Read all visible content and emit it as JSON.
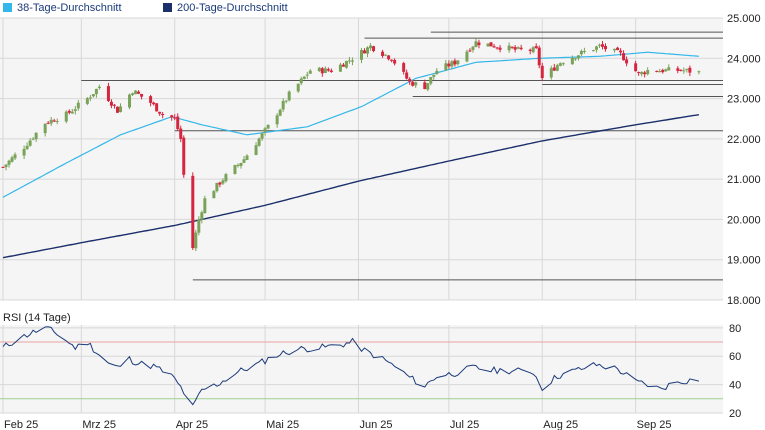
{
  "legend": [
    {
      "label": "38-Tage-Durchschnitt",
      "color": "#33b7ea"
    },
    {
      "label": "200-Tage-Durchschnitt",
      "color": "#1b2f6b"
    }
  ],
  "colors": {
    "up": "#7aa35a",
    "down": "#d6263f",
    "grid": "#d8d8d8",
    "panel_bg": "#f5f5f5",
    "rsi_line": "#1b3a7a",
    "rsi_upper": "#e8a3a3",
    "rsi_lower": "#9fcf8f",
    "support": "#555555"
  },
  "chart_data": [
    {
      "type": "candlestick",
      "title": "",
      "ylim": [
        18000,
        25000
      ],
      "y_ticks": [
        {
          "value": 25000,
          "label": "25.000"
        },
        {
          "value": 24000,
          "label": "24.000"
        },
        {
          "value": 23000,
          "label": "23.000"
        },
        {
          "value": 22000,
          "label": "22.000"
        },
        {
          "value": 21000,
          "label": "21.000"
        },
        {
          "value": 20000,
          "label": "20.000"
        },
        {
          "value": 19000,
          "label": "19.000"
        },
        {
          "value": 18000,
          "label": "18.000"
        }
      ],
      "x_range": [
        "2025-02-03",
        "2025-09-30"
      ],
      "x_ticks": [
        {
          "date": "2025-02-01",
          "label": "Feb 25"
        },
        {
          "date": "2025-03-01",
          "label": "Mrz 25"
        },
        {
          "date": "2025-04-01",
          "label": "Apr 25"
        },
        {
          "date": "2025-05-01",
          "label": "Mai 25"
        },
        {
          "date": "2025-06-01",
          "label": "Jun 25"
        },
        {
          "date": "2025-07-01",
          "label": "Jul 25"
        },
        {
          "date": "2025-08-01",
          "label": "Aug 25"
        },
        {
          "date": "2025-09-01",
          "label": "Sep 25"
        }
      ],
      "price_anchors": [
        [
          "2025-02-03",
          21300
        ],
        [
          "2025-02-10",
          21800
        ],
        [
          "2025-02-17",
          22400
        ],
        [
          "2025-02-24",
          22600
        ],
        [
          "2025-03-03",
          23000
        ],
        [
          "2025-03-07",
          23300
        ],
        [
          "2025-03-13",
          22700
        ],
        [
          "2025-03-18",
          23200
        ],
        [
          "2025-03-24",
          22900
        ],
        [
          "2025-03-28",
          22600
        ],
        [
          "2025-04-01",
          22500
        ],
        [
          "2025-04-03",
          22000
        ],
        [
          "2025-04-04",
          21100
        ],
        [
          "2025-04-07",
          19300
        ],
        [
          "2025-04-09",
          20000
        ],
        [
          "2025-04-11",
          20500
        ],
        [
          "2025-04-17",
          21000
        ],
        [
          "2025-04-24",
          21500
        ],
        [
          "2025-05-02",
          22300
        ],
        [
          "2025-05-09",
          23100
        ],
        [
          "2025-05-16",
          23700
        ],
        [
          "2025-05-23",
          23700
        ],
        [
          "2025-05-30",
          24000
        ],
        [
          "2025-06-05",
          24300
        ],
        [
          "2025-06-12",
          24000
        ],
        [
          "2025-06-18",
          23400
        ],
        [
          "2025-06-23",
          23300
        ],
        [
          "2025-06-27",
          23700
        ],
        [
          "2025-07-03",
          23900
        ],
        [
          "2025-07-10",
          24400
        ],
        [
          "2025-07-17",
          24300
        ],
        [
          "2025-07-24",
          24200
        ],
        [
          "2025-07-30",
          24200
        ],
        [
          "2025-08-01",
          23500
        ],
        [
          "2025-08-07",
          23900
        ],
        [
          "2025-08-13",
          24100
        ],
        [
          "2025-08-20",
          24300
        ],
        [
          "2025-08-27",
          24100
        ],
        [
          "2025-09-02",
          23600
        ],
        [
          "2025-09-05",
          23700
        ],
        [
          "2025-09-11",
          23700
        ],
        [
          "2025-09-17",
          23700
        ],
        [
          "2025-09-22",
          23650
        ]
      ],
      "sma38": [
        [
          "2025-02-03",
          20550
        ],
        [
          "2025-02-24",
          21400
        ],
        [
          "2025-03-14",
          22100
        ],
        [
          "2025-03-31",
          22550
        ],
        [
          "2025-04-10",
          22350
        ],
        [
          "2025-04-25",
          22100
        ],
        [
          "2025-05-15",
          22300
        ],
        [
          "2025-06-02",
          22800
        ],
        [
          "2025-06-20",
          23500
        ],
        [
          "2025-07-10",
          23900
        ],
        [
          "2025-07-31",
          24000
        ],
        [
          "2025-08-20",
          24050
        ],
        [
          "2025-09-05",
          24150
        ],
        [
          "2025-09-22",
          24050
        ]
      ],
      "sma200": [
        [
          "2025-02-03",
          19050
        ],
        [
          "2025-03-03",
          19450
        ],
        [
          "2025-04-01",
          19850
        ],
        [
          "2025-05-01",
          20350
        ],
        [
          "2025-06-01",
          20950
        ],
        [
          "2025-07-01",
          21450
        ],
        [
          "2025-08-01",
          21950
        ],
        [
          "2025-09-01",
          22350
        ],
        [
          "2025-09-22",
          22600
        ]
      ],
      "support_lines": [
        {
          "start": "2025-06-25",
          "end": "2025-09-30",
          "value": 24650
        },
        {
          "start": "2025-06-03",
          "end": "2025-09-30",
          "value": 24500
        },
        {
          "start": "2025-03-01",
          "end": "2025-09-30",
          "value": 23450
        },
        {
          "start": "2025-08-01",
          "end": "2025-09-30",
          "value": 23350
        },
        {
          "start": "2025-06-19",
          "end": "2025-09-30",
          "value": 23050
        },
        {
          "start": "2025-04-01",
          "end": "2025-09-30",
          "value": 22200
        },
        {
          "start": "2025-04-07",
          "end": "2025-09-30",
          "value": 18500
        }
      ]
    },
    {
      "type": "line",
      "title": "RSI (14 Tage)",
      "ylim": [
        20,
        82
      ],
      "y_ticks": [
        {
          "value": 80,
          "label": "80"
        },
        {
          "value": 60,
          "label": "60"
        },
        {
          "value": 40,
          "label": "40"
        },
        {
          "value": 20,
          "label": "20"
        }
      ],
      "upper_band": 70,
      "lower_band": 30,
      "rsi_anchors": [
        [
          "2025-02-03",
          66
        ],
        [
          "2025-02-07",
          71
        ],
        [
          "2025-02-12",
          76
        ],
        [
          "2025-02-17",
          80
        ],
        [
          "2025-02-21",
          76
        ],
        [
          "2025-02-27",
          66
        ],
        [
          "2025-03-03",
          70
        ],
        [
          "2025-03-06",
          63
        ],
        [
          "2025-03-10",
          55
        ],
        [
          "2025-03-13",
          52
        ],
        [
          "2025-03-17",
          58
        ],
        [
          "2025-03-20",
          55
        ],
        [
          "2025-03-25",
          53
        ],
        [
          "2025-03-31",
          46
        ],
        [
          "2025-04-03",
          38
        ],
        [
          "2025-04-07",
          24
        ],
        [
          "2025-04-10",
          36
        ],
        [
          "2025-04-15",
          40
        ],
        [
          "2025-04-22",
          49
        ],
        [
          "2025-04-28",
          54
        ],
        [
          "2025-05-05",
          61
        ],
        [
          "2025-05-12",
          65
        ],
        [
          "2025-05-19",
          66
        ],
        [
          "2025-05-26",
          68
        ],
        [
          "2025-05-30",
          70
        ],
        [
          "2025-06-03",
          64
        ],
        [
          "2025-06-09",
          58
        ],
        [
          "2025-06-13",
          53
        ],
        [
          "2025-06-18",
          45
        ],
        [
          "2025-06-23",
          39
        ],
        [
          "2025-06-27",
          46
        ],
        [
          "2025-07-03",
          48
        ],
        [
          "2025-07-09",
          52
        ],
        [
          "2025-07-15",
          50
        ],
        [
          "2025-07-21",
          50
        ],
        [
          "2025-07-29",
          49
        ],
        [
          "2025-08-01",
          38
        ],
        [
          "2025-08-06",
          46
        ],
        [
          "2025-08-12",
          50
        ],
        [
          "2025-08-19",
          54
        ],
        [
          "2025-08-26",
          51
        ],
        [
          "2025-09-01",
          42
        ],
        [
          "2025-09-05",
          40
        ],
        [
          "2025-09-09",
          37
        ],
        [
          "2025-09-15",
          42
        ],
        [
          "2025-09-22",
          44
        ]
      ]
    }
  ]
}
